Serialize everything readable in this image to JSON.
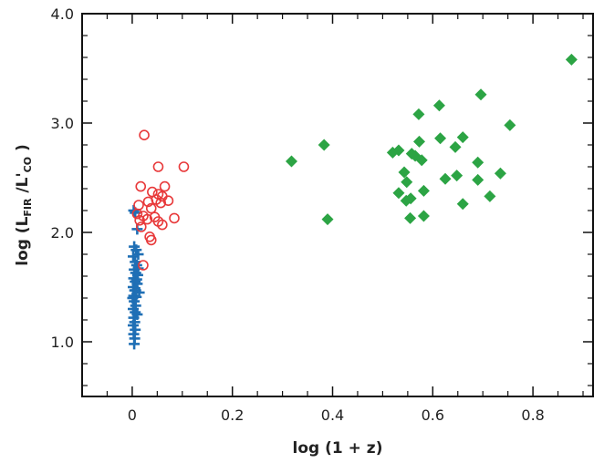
{
  "chart_data": {
    "type": "scatter",
    "xlabel": "log (1 + z)",
    "ylabel": {
      "prefix": "log (L",
      "sub1": "FIR",
      "middle": " /L'",
      "sub2": "CO",
      "suffix": " )"
    },
    "xlim": [
      -0.1,
      0.92
    ],
    "ylim": [
      0.5,
      4.0
    ],
    "x_ticks": [
      {
        "value": 0.0,
        "label": "0"
      },
      {
        "value": 0.2,
        "label": "0.2"
      },
      {
        "value": 0.4,
        "label": "0.4"
      },
      {
        "value": 0.6,
        "label": "0.6"
      },
      {
        "value": 0.8,
        "label": "0.8"
      }
    ],
    "y_ticks": [
      {
        "value": 1.0,
        "label": "1.0"
      },
      {
        "value": 2.0,
        "label": "2.0"
      },
      {
        "value": 3.0,
        "label": "3.0"
      },
      {
        "value": 4.0,
        "label": "4.0"
      }
    ],
    "x_minor_step": 0.05,
    "y_minor_step": 0.2,
    "grid": false,
    "series": [
      {
        "marker": "plus",
        "color": "#1f6fb5",
        "points": [
          [
            0.003,
            2.2
          ],
          [
            0.006,
            2.18
          ],
          [
            0.01,
            2.03
          ],
          [
            0.004,
            1.87
          ],
          [
            0.008,
            1.84
          ],
          [
            0.012,
            1.8
          ],
          [
            0.002,
            1.78
          ],
          [
            0.006,
            1.73
          ],
          [
            0.009,
            1.7
          ],
          [
            0.004,
            1.66
          ],
          [
            0.007,
            1.63
          ],
          [
            0.011,
            1.61
          ],
          [
            0.003,
            1.58
          ],
          [
            0.006,
            1.55
          ],
          [
            0.01,
            1.53
          ],
          [
            0.002,
            1.5
          ],
          [
            0.005,
            1.47
          ],
          [
            0.014,
            1.45
          ],
          [
            0.003,
            1.42
          ],
          [
            0.008,
            1.41
          ],
          [
            0.004,
            1.37
          ],
          [
            0.007,
            1.33
          ],
          [
            0.002,
            1.3
          ],
          [
            0.006,
            1.27
          ],
          [
            0.01,
            1.25
          ],
          [
            0.003,
            1.22
          ],
          [
            0.005,
            1.18
          ],
          [
            0.002,
            1.15
          ],
          [
            0.006,
            1.11
          ],
          [
            0.003,
            1.07
          ],
          [
            0.005,
            1.03
          ],
          [
            0.004,
            0.98
          ],
          [
            0.009,
            1.57
          ],
          [
            0.012,
            1.67
          ],
          [
            0.001,
            1.4
          ],
          [
            0.007,
            1.47
          ]
        ]
      },
      {
        "marker": "circle",
        "color": "#e8393a",
        "points": [
          [
            0.024,
            2.89
          ],
          [
            0.052,
            2.6
          ],
          [
            0.103,
            2.6
          ],
          [
            0.017,
            2.42
          ],
          [
            0.065,
            2.42
          ],
          [
            0.04,
            2.37
          ],
          [
            0.052,
            2.35
          ],
          [
            0.06,
            2.33
          ],
          [
            0.048,
            2.3
          ],
          [
            0.072,
            2.29
          ],
          [
            0.032,
            2.28
          ],
          [
            0.057,
            2.27
          ],
          [
            0.013,
            2.25
          ],
          [
            0.038,
            2.22
          ],
          [
            0.01,
            2.17
          ],
          [
            0.022,
            2.15
          ],
          [
            0.045,
            2.14
          ],
          [
            0.084,
            2.13
          ],
          [
            0.03,
            2.12
          ],
          [
            0.015,
            2.11
          ],
          [
            0.052,
            2.1
          ],
          [
            0.06,
            2.07
          ],
          [
            0.018,
            2.05
          ],
          [
            0.035,
            1.96
          ],
          [
            0.038,
            1.93
          ],
          [
            0.022,
            1.7
          ]
        ]
      },
      {
        "marker": "diamond",
        "color": "#2ca444",
        "points": [
          [
            0.877,
            3.58
          ],
          [
            0.696,
            3.26
          ],
          [
            0.613,
            3.16
          ],
          [
            0.572,
            3.08
          ],
          [
            0.754,
            2.98
          ],
          [
            0.66,
            2.87
          ],
          [
            0.615,
            2.86
          ],
          [
            0.573,
            2.83
          ],
          [
            0.383,
            2.8
          ],
          [
            0.645,
            2.78
          ],
          [
            0.532,
            2.75
          ],
          [
            0.52,
            2.73
          ],
          [
            0.558,
            2.72
          ],
          [
            0.565,
            2.7
          ],
          [
            0.578,
            2.66
          ],
          [
            0.318,
            2.65
          ],
          [
            0.69,
            2.64
          ],
          [
            0.543,
            2.55
          ],
          [
            0.735,
            2.54
          ],
          [
            0.648,
            2.52
          ],
          [
            0.625,
            2.49
          ],
          [
            0.69,
            2.48
          ],
          [
            0.548,
            2.46
          ],
          [
            0.532,
            2.36
          ],
          [
            0.582,
            2.38
          ],
          [
            0.714,
            2.33
          ],
          [
            0.556,
            2.31
          ],
          [
            0.547,
            2.29
          ],
          [
            0.66,
            2.26
          ],
          [
            0.582,
            2.15
          ],
          [
            0.555,
            2.13
          ],
          [
            0.39,
            2.12
          ]
        ]
      }
    ]
  }
}
